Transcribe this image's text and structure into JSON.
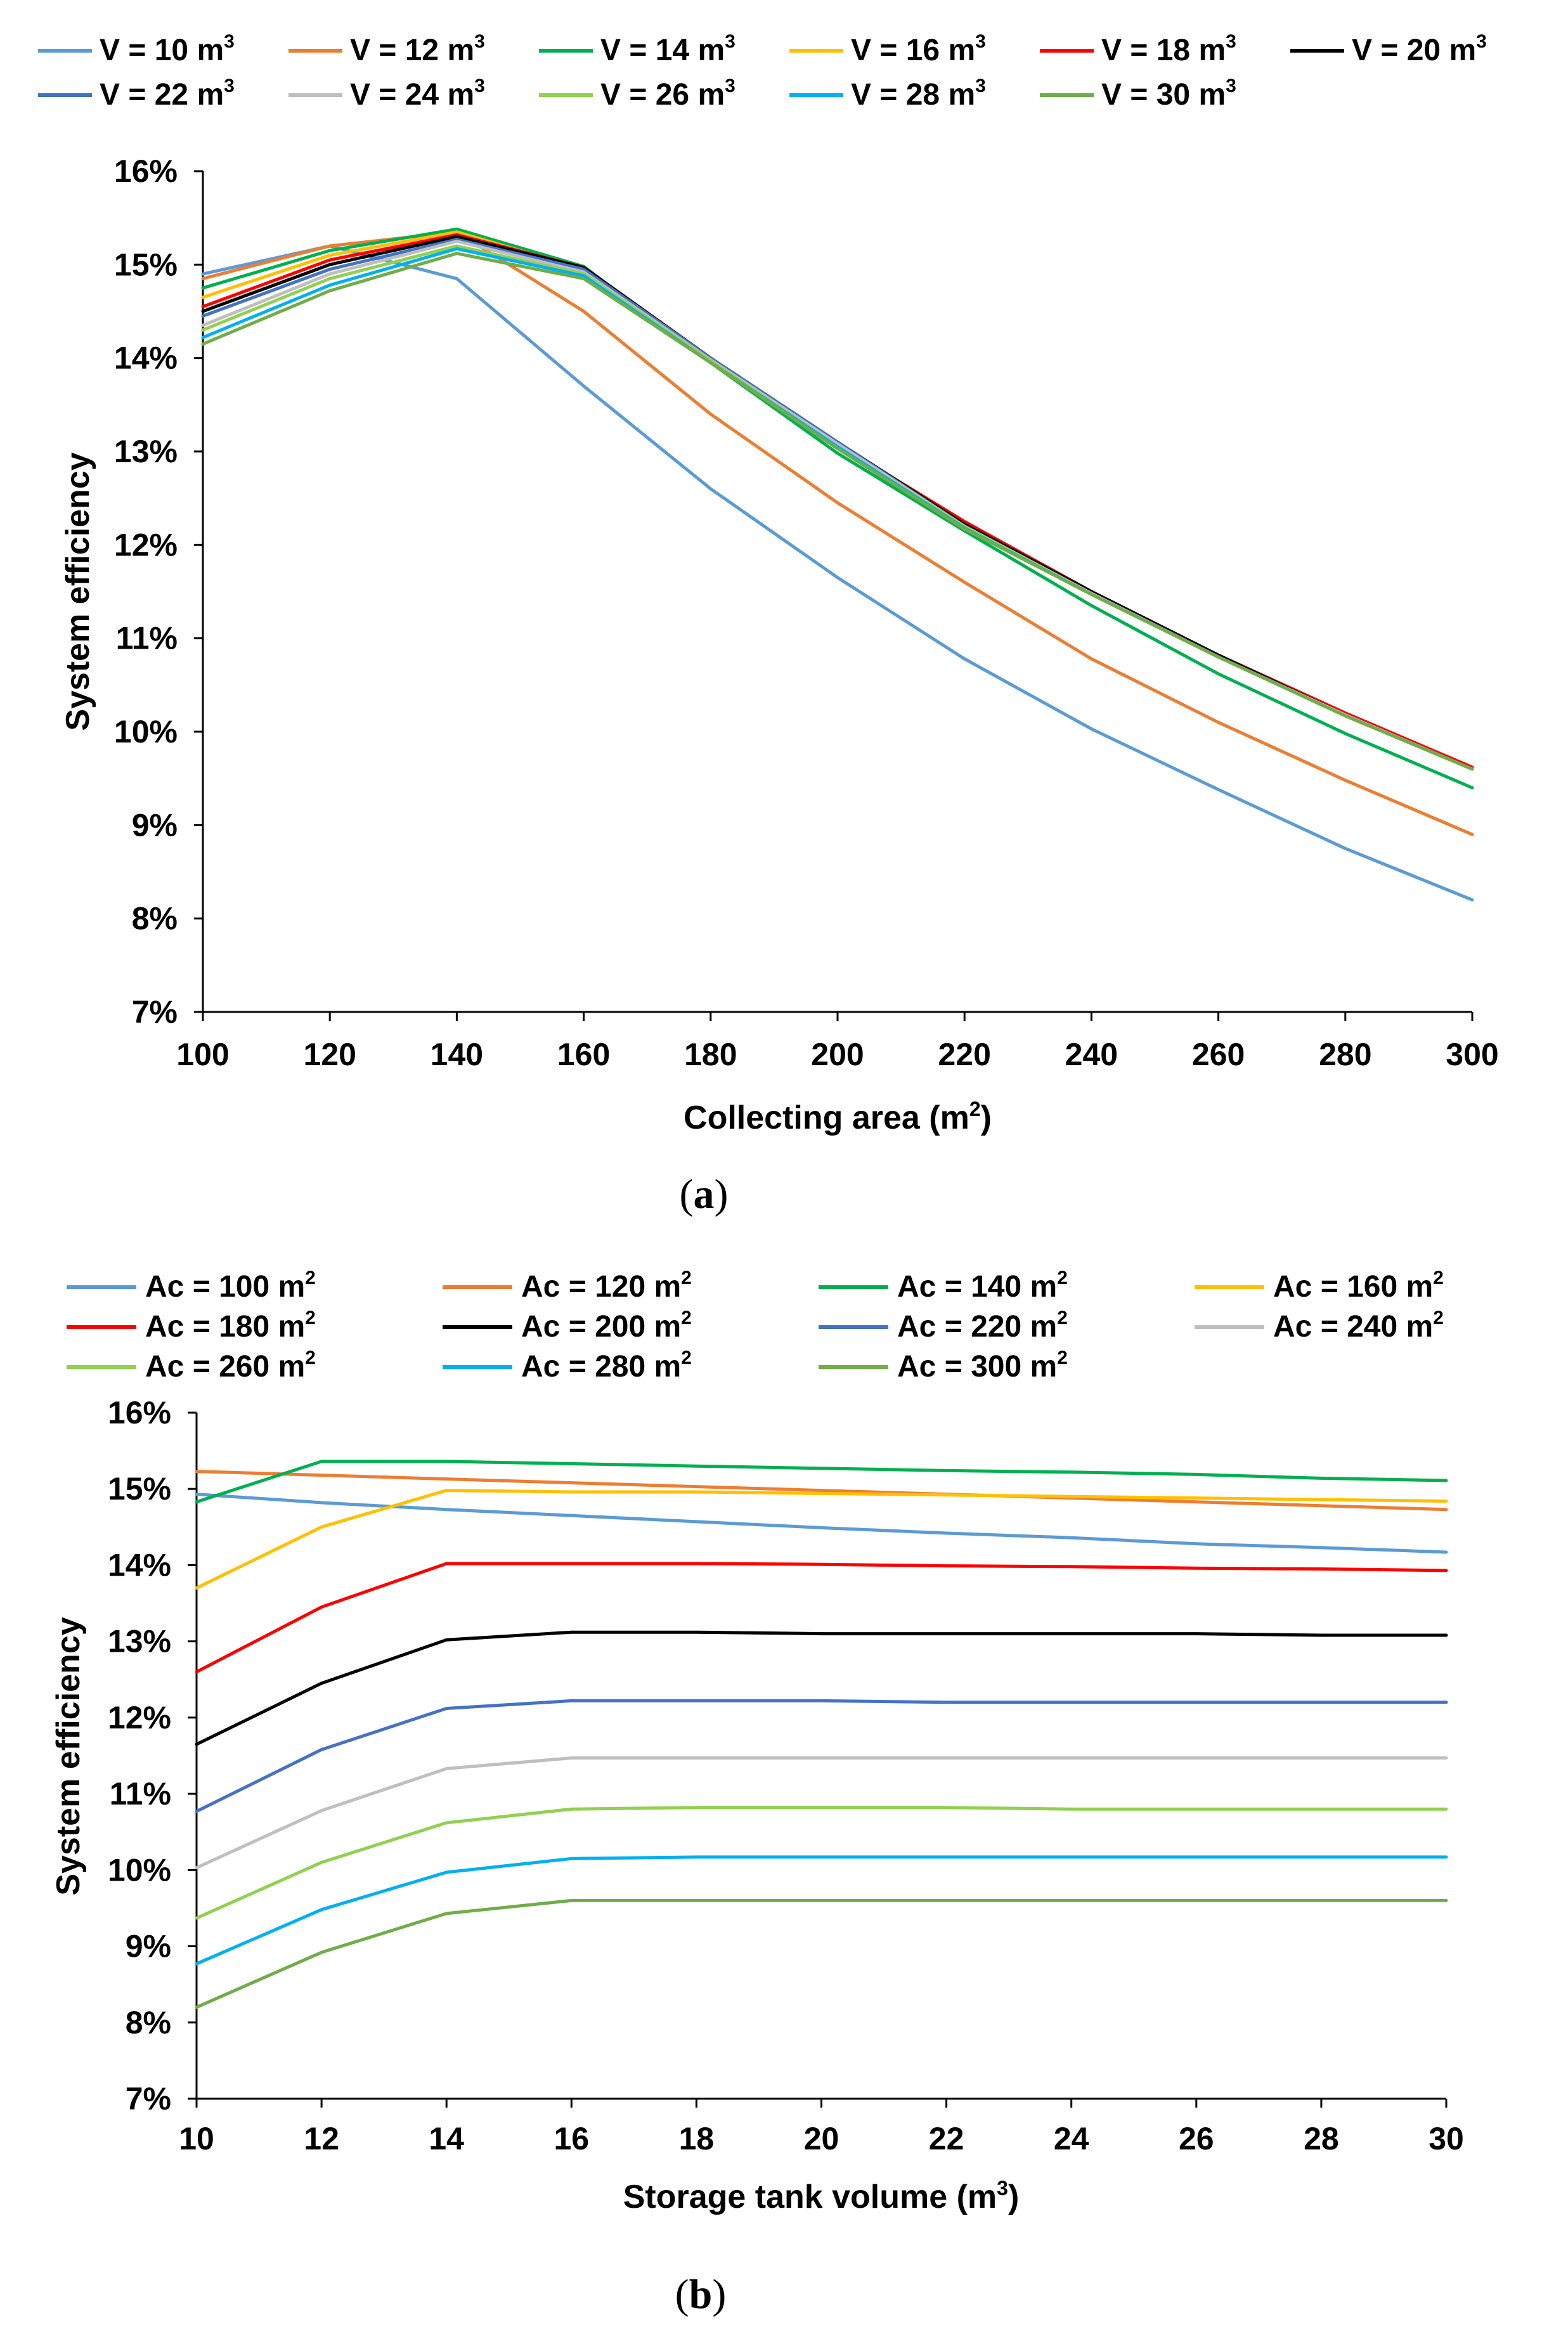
{
  "chart_data": [
    {
      "panel": "a",
      "type": "line",
      "xlabel": "Collecting area (m2)",
      "xlabel_main": "Collecting area (m",
      "xlabel_sup": "2",
      "xlabel_end": ")",
      "ylabel": "System efficiency",
      "x": [
        100,
        120,
        140,
        160,
        180,
        200,
        220,
        240,
        260,
        280,
        300
      ],
      "xlim": [
        100,
        300
      ],
      "ylim": [
        7,
        16
      ],
      "yticks": [
        "7%",
        "8%",
        "9%",
        "10%",
        "11%",
        "12%",
        "13%",
        "14%",
        "15%",
        "16%"
      ],
      "xticks": [
        "100",
        "120",
        "140",
        "160",
        "180",
        "200",
        "220",
        "240",
        "260",
        "280",
        "300"
      ],
      "series": [
        {
          "name": "V = 10 m3",
          "label": "V = 10 m",
          "sup": "3",
          "color": "#5B9BD5",
          "values": [
            14.9,
            15.2,
            14.85,
            13.7,
            12.6,
            11.65,
            10.78,
            10.03,
            9.38,
            8.75,
            8.2
          ]
        },
        {
          "name": "V = 12 m3",
          "label": "V = 12 m",
          "sup": "3",
          "color": "#ED7D31",
          "values": [
            14.85,
            15.2,
            15.35,
            14.5,
            13.4,
            12.45,
            11.6,
            10.78,
            10.1,
            9.48,
            8.9
          ]
        },
        {
          "name": "V = 14 m3",
          "label": "V = 14 m",
          "sup": "3",
          "color": "#00B050",
          "values": [
            14.75,
            15.15,
            15.38,
            14.98,
            13.95,
            12.98,
            12.15,
            11.35,
            10.62,
            9.98,
            9.4
          ]
        },
        {
          "name": "V = 16 m3",
          "label": "V = 16 m",
          "sup": "3",
          "color": "#FFC000",
          "values": [
            14.65,
            15.1,
            15.35,
            14.95,
            13.97,
            13.05,
            12.22,
            11.47,
            10.8,
            10.17,
            9.6
          ]
        },
        {
          "name": "V = 18 m3",
          "label": "V = 18 m",
          "sup": "3",
          "color": "#FF0000",
          "values": [
            14.55,
            15.05,
            15.32,
            14.97,
            14.0,
            13.08,
            12.25,
            11.5,
            10.82,
            10.2,
            9.62
          ]
        },
        {
          "name": "V = 20 m3",
          "label": "V = 20 m",
          "sup": "3",
          "color": "#000000",
          "values": [
            14.5,
            15.0,
            15.3,
            14.97,
            14.0,
            13.1,
            12.22,
            11.5,
            10.82,
            10.18,
            9.6
          ]
        },
        {
          "name": "V = 22 m3",
          "label": "V = 22 m",
          "sup": "3",
          "color": "#4472C4",
          "values": [
            14.45,
            14.95,
            15.27,
            14.95,
            14.0,
            13.1,
            12.2,
            11.48,
            10.8,
            10.18,
            9.6
          ]
        },
        {
          "name": "V = 24 m3",
          "label": "V = 24 m",
          "sup": "3",
          "color": "#BFBFBF",
          "values": [
            14.35,
            14.9,
            15.25,
            14.92,
            13.98,
            13.08,
            12.2,
            11.48,
            10.8,
            10.18,
            9.6
          ]
        },
        {
          "name": "V = 26 m3",
          "label": "V = 26 m",
          "sup": "3",
          "color": "#92D050",
          "values": [
            14.3,
            14.85,
            15.2,
            14.9,
            13.97,
            13.05,
            12.2,
            11.47,
            10.8,
            10.17,
            9.6
          ]
        },
        {
          "name": "V = 28 m3",
          "label": "V = 28 m",
          "sup": "3",
          "color": "#00B0F0",
          "values": [
            14.22,
            14.78,
            15.17,
            14.88,
            13.95,
            13.05,
            12.18,
            11.47,
            10.8,
            10.17,
            9.6
          ]
        },
        {
          "name": "V = 30 m3",
          "label": "V = 30 m",
          "sup": "3",
          "color": "#70AD47",
          "values": [
            14.15,
            14.72,
            15.12,
            14.85,
            13.95,
            13.03,
            12.17,
            11.47,
            10.8,
            10.17,
            9.6
          ]
        }
      ]
    },
    {
      "panel": "b",
      "type": "line",
      "xlabel": "Storage tank volume (m3)",
      "xlabel_main": "Storage tank volume (m",
      "xlabel_sup": "3",
      "xlabel_end": ")",
      "ylabel": "System efficiency",
      "x": [
        10,
        12,
        14,
        16,
        18,
        20,
        22,
        24,
        26,
        28,
        30
      ],
      "xlim": [
        10,
        30
      ],
      "ylim": [
        7,
        16
      ],
      "yticks": [
        "7%",
        "8%",
        "9%",
        "10%",
        "11%",
        "12%",
        "13%",
        "14%",
        "15%",
        "16%"
      ],
      "xticks": [
        "10",
        "12",
        "14",
        "16",
        "18",
        "20",
        "22",
        "24",
        "26",
        "28",
        "30"
      ],
      "series": [
        {
          "name": "Ac = 100 m2",
          "label": "Ac = 100 m",
          "sup": "2",
          "color": "#5B9BD5",
          "values": [
            14.93,
            14.82,
            14.73,
            14.65,
            14.57,
            14.49,
            14.42,
            14.36,
            14.28,
            14.23,
            14.17
          ]
        },
        {
          "name": "Ac = 120 m2",
          "label": "Ac = 120 m",
          "sup": "2",
          "color": "#ED7D31",
          "values": [
            15.23,
            15.18,
            15.13,
            15.08,
            15.03,
            14.98,
            14.93,
            14.88,
            14.83,
            14.78,
            14.73
          ]
        },
        {
          "name": "Ac = 140 m2",
          "label": "Ac = 140 m",
          "sup": "2",
          "color": "#00B050",
          "values": [
            14.83,
            15.36,
            15.36,
            15.33,
            15.3,
            15.27,
            15.24,
            15.22,
            15.19,
            15.14,
            15.11
          ]
        },
        {
          "name": "Ac = 160 m2",
          "label": "Ac = 160 m",
          "sup": "2",
          "color": "#FFC000",
          "values": [
            13.7,
            14.5,
            14.98,
            14.96,
            14.96,
            14.94,
            14.92,
            14.9,
            14.88,
            14.86,
            14.84
          ]
        },
        {
          "name": "Ac = 180 m2",
          "label": "Ac = 180 m",
          "sup": "2",
          "color": "#FF0000",
          "values": [
            12.6,
            13.45,
            14.02,
            14.02,
            14.02,
            14.01,
            13.99,
            13.98,
            13.96,
            13.95,
            13.93
          ]
        },
        {
          "name": "Ac = 200 m2",
          "label": "Ac = 200 m",
          "sup": "2",
          "color": "#000000",
          "values": [
            11.65,
            12.45,
            13.02,
            13.12,
            13.12,
            13.1,
            13.1,
            13.1,
            13.1,
            13.08,
            13.08
          ]
        },
        {
          "name": "Ac = 220 m2",
          "label": "Ac = 220 m",
          "sup": "2",
          "color": "#4472C4",
          "values": [
            10.77,
            11.58,
            12.12,
            12.22,
            12.22,
            12.22,
            12.2,
            12.2,
            12.2,
            12.2,
            12.2
          ]
        },
        {
          "name": "Ac = 240 m2",
          "label": "Ac = 240 m",
          "sup": "2",
          "color": "#BFBFBF",
          "values": [
            10.03,
            10.78,
            11.33,
            11.47,
            11.47,
            11.47,
            11.47,
            11.47,
            11.47,
            11.47,
            11.47
          ]
        },
        {
          "name": "Ac = 260 m2",
          "label": "Ac = 260 m",
          "sup": "2",
          "color": "#92D050",
          "values": [
            9.37,
            10.1,
            10.62,
            10.8,
            10.82,
            10.82,
            10.82,
            10.8,
            10.8,
            10.8,
            10.8
          ]
        },
        {
          "name": "Ac = 280 m2",
          "label": "Ac = 280 m",
          "sup": "2",
          "color": "#00B0F0",
          "values": [
            8.77,
            9.48,
            9.97,
            10.15,
            10.17,
            10.17,
            10.17,
            10.17,
            10.17,
            10.17,
            10.17
          ]
        },
        {
          "name": "Ac = 300 m2",
          "label": "Ac = 300 m",
          "sup": "2",
          "color": "#70AD47",
          "values": [
            8.2,
            8.92,
            9.43,
            9.6,
            9.6,
            9.6,
            9.6,
            9.6,
            9.6,
            9.6,
            9.6
          ]
        }
      ]
    }
  ],
  "labels": {
    "a": "a",
    "b": "b"
  }
}
